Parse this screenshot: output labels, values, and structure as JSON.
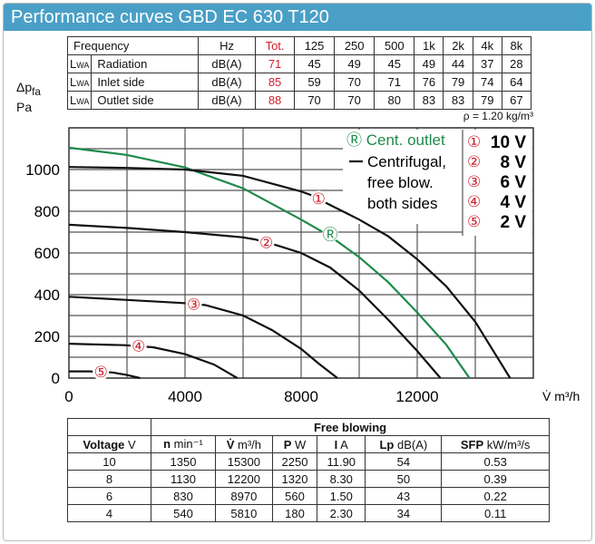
{
  "title": "Performance curves GBD EC 630 T120",
  "sound_table": {
    "headers": [
      "Frequency",
      "Hz",
      "Tot.",
      "125",
      "250",
      "500",
      "1k",
      "2k",
      "4k",
      "8k"
    ],
    "rows": [
      {
        "sym": "L",
        "sub": "WA",
        "label": "Radiation",
        "unit": "dB(A)",
        "tot": "71",
        "values": [
          "45",
          "49",
          "45",
          "49",
          "44",
          "37",
          "28"
        ]
      },
      {
        "sym": "L",
        "sub": "WA",
        "label": "Inlet side",
        "unit": "dB(A)",
        "tot": "85",
        "values": [
          "59",
          "70",
          "71",
          "76",
          "79",
          "74",
          "64"
        ]
      },
      {
        "sym": "L",
        "sub": "WA",
        "label": "Outlet side",
        "unit": "dB(A)",
        "tot": "88",
        "values": [
          "70",
          "70",
          "80",
          "83",
          "83",
          "79",
          "67"
        ]
      }
    ]
  },
  "y_axis_label": {
    "main": "Δp",
    "sub": "fa",
    "unit": "Pa"
  },
  "density": "ρ = 1.20 kg/m³",
  "chart_data": {
    "type": "line",
    "xlabel": "V̇ m³/h",
    "ylabel": "Δpfa Pa",
    "xlim": [
      0,
      16000
    ],
    "ylim": [
      0,
      1200
    ],
    "xticks": [
      0,
      4000,
      8000,
      12000
    ],
    "yticks": [
      0,
      200,
      400,
      600,
      800,
      1000
    ],
    "grid": true,
    "legend": {
      "green_marker": "Ⓡ",
      "green_label": "Cent. outlet",
      "black_label": [
        "Centrifugal,",
        "free blow.",
        "both sides"
      ],
      "voltages": [
        {
          "mark": "①",
          "label": "10 V"
        },
        {
          "mark": "②",
          "label": "8 V"
        },
        {
          "mark": "③",
          "label": "6 V"
        },
        {
          "mark": "④",
          "label": "4 V"
        },
        {
          "mark": "⑤",
          "label": "2 V"
        }
      ]
    },
    "series": [
      {
        "name": "Cent. outlet",
        "marker": "Ⓡ",
        "color": "#1e8a4a",
        "label_at": [
          9000,
          690
        ],
        "points": [
          [
            0,
            1105
          ],
          [
            2000,
            1070
          ],
          [
            4000,
            1010
          ],
          [
            6000,
            910
          ],
          [
            8000,
            760
          ],
          [
            9000,
            680
          ],
          [
            10000,
            580
          ],
          [
            11000,
            460
          ],
          [
            12000,
            315
          ],
          [
            13000,
            160
          ],
          [
            13800,
            0
          ]
        ]
      },
      {
        "name": "10 V",
        "marker": "①",
        "color": "#111",
        "label_at": [
          8600,
          860
        ],
        "points": [
          [
            0,
            1012
          ],
          [
            2000,
            1008
          ],
          [
            4000,
            1000
          ],
          [
            6000,
            970
          ],
          [
            8000,
            895
          ],
          [
            8300,
            880
          ],
          [
            9000,
            830
          ],
          [
            10000,
            760
          ],
          [
            11000,
            680
          ],
          [
            12000,
            570
          ],
          [
            13000,
            440
          ],
          [
            14000,
            270
          ],
          [
            15200,
            0
          ]
        ]
      },
      {
        "name": "8 V",
        "marker": "②",
        "color": "#111",
        "label_at": [
          6800,
          650
        ],
        "points": [
          [
            0,
            735
          ],
          [
            2000,
            720
          ],
          [
            4000,
            700
          ],
          [
            6000,
            675
          ],
          [
            6400,
            665
          ],
          [
            7200,
            635
          ],
          [
            8000,
            600
          ],
          [
            9000,
            530
          ],
          [
            10000,
            420
          ],
          [
            11000,
            280
          ],
          [
            12000,
            130
          ],
          [
            12800,
            0
          ]
        ]
      },
      {
        "name": "6 V",
        "marker": "③",
        "color": "#111",
        "label_at": [
          4300,
          355
        ],
        "points": [
          [
            0,
            390
          ],
          [
            2000,
            375
          ],
          [
            3900,
            360
          ],
          [
            4700,
            350
          ],
          [
            6000,
            300
          ],
          [
            7000,
            230
          ],
          [
            8000,
            140
          ],
          [
            8600,
            70
          ],
          [
            9250,
            0
          ]
        ]
      },
      {
        "name": "4 V",
        "marker": "④",
        "color": "#111",
        "label_at": [
          2400,
          155
        ],
        "points": [
          [
            0,
            165
          ],
          [
            1900,
            158
          ],
          [
            2900,
            148
          ],
          [
            4000,
            115
          ],
          [
            5000,
            65
          ],
          [
            5800,
            0
          ]
        ]
      },
      {
        "name": "2 V",
        "marker": "⑤",
        "color": "#111",
        "label_at": [
          1100,
          30
        ],
        "points": [
          [
            0,
            32
          ],
          [
            700,
            32
          ],
          [
            1500,
            27
          ],
          [
            2000,
            15
          ],
          [
            2450,
            0
          ]
        ]
      }
    ]
  },
  "free_table": {
    "group_header": "Free blowing",
    "headers": [
      {
        "b": "Voltage",
        "u": " V"
      },
      {
        "b": "n",
        "u": " min⁻¹"
      },
      {
        "b": "V̇",
        "u": " m³/h"
      },
      {
        "b": "P",
        "u": " W"
      },
      {
        "b": "I",
        "u": " A"
      },
      {
        "b": "Lp",
        "u": " dB(A)"
      },
      {
        "b": "SFP",
        "u": " kW/m³/s"
      }
    ],
    "rows": [
      [
        "10",
        "1350",
        "15300",
        "2250",
        "11.90",
        "54",
        "0.53"
      ],
      [
        "8",
        "1130",
        "12200",
        "1320",
        "8.30",
        "50",
        "0.39"
      ],
      [
        "6",
        "830",
        "8970",
        "560",
        "1.50",
        "43",
        "0.22"
      ],
      [
        "4",
        "540",
        "5810",
        "180",
        "2.30",
        "34",
        "0.11"
      ]
    ]
  }
}
